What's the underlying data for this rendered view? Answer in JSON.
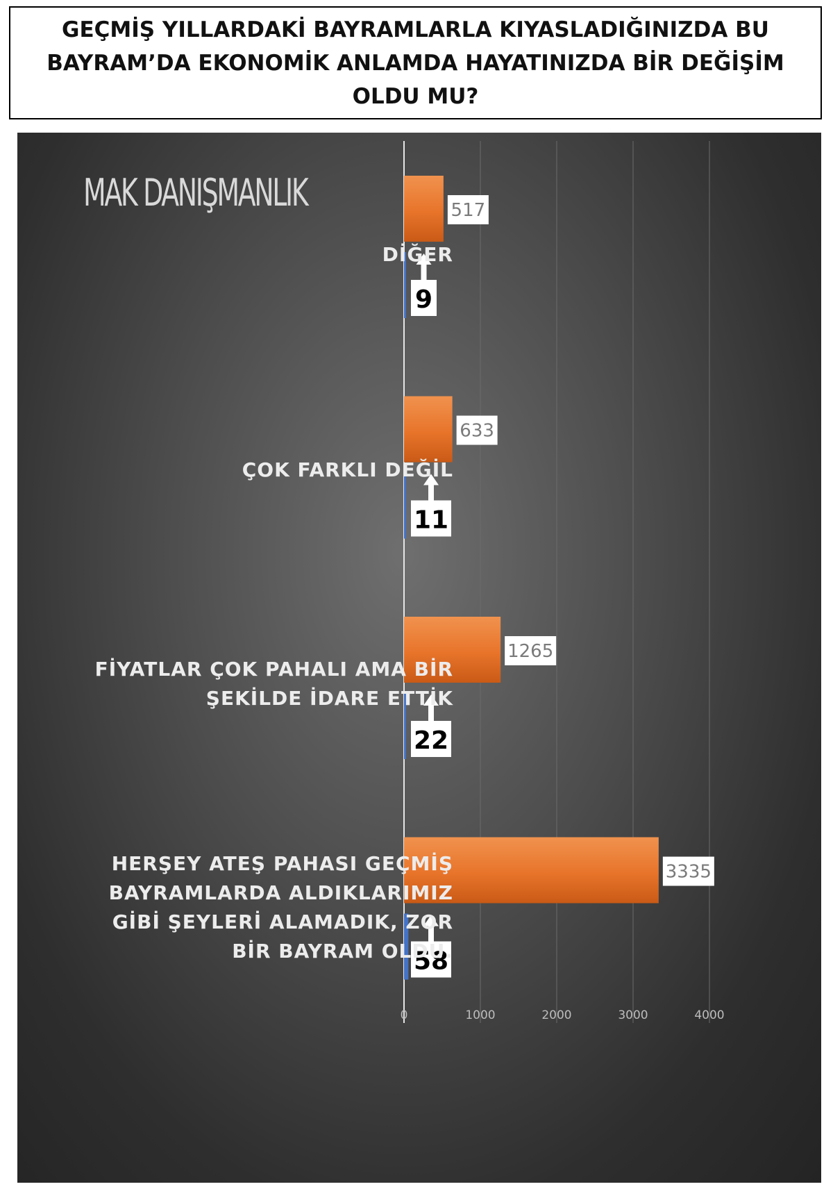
{
  "title": "GEÇMİŞ YILLARDAKİ BAYRAMLARLA KIYASLADIĞINIZDA BU BAYRAM’DA EKONOMİK ANLAMDA HAYATINIZDA BİR DEĞİŞİM OLDU MU?",
  "watermark": "MAK DANIŞMANLIK",
  "colors": {
    "bar_primary": "#e8742a",
    "bar_secondary": "#4472c4",
    "panel": "#3a3a3a",
    "label": "#ececec"
  },
  "chart_data": {
    "type": "bar",
    "orientation": "horizontal",
    "categories": [
      "DİĞER",
      "ÇOK FARKLI DEĞİL",
      "FİYATLAR ÇOK PAHALI AMA BİR ŞEKİLDE İDARE ETTİK",
      "HERŞEY ATEŞ PAHASI GEÇMİŞ BAYRAMLARDA ALDIKLARIMIZ GİBİ ŞEYLERİ  ALAMADIK, ZOR BİR BAYRAM OLDU."
    ],
    "category_lines": [
      [
        "DİĞER"
      ],
      [
        "ÇOK FARKLI DEĞİL"
      ],
      [
        "FİYATLAR ÇOK PAHALI AMA BİR",
        "ŞEKİLDE İDARE ETTİK"
      ],
      [
        "HERŞEY ATEŞ PAHASI GEÇMİŞ",
        "BAYRAMLARDA ALDIKLARIMIZ",
        "GİBİ ŞEYLERİ  ALAMADIK, ZOR",
        "BİR BAYRAM OLDU."
      ]
    ],
    "series": [
      {
        "values": [
          517,
          633,
          1265,
          3335
        ],
        "labels": [
          "517",
          "633",
          "1265",
          "3335"
        ],
        "color": "#e8742a"
      },
      {
        "values": [
          9,
          11,
          22,
          58
        ],
        "labels": [
          "9",
          "11",
          "22",
          "58"
        ],
        "color": "#4472c4"
      }
    ],
    "x_ticks": [
      0,
      1000,
      2000,
      3000,
      4000
    ],
    "x_tick_labels": [
      "0",
      "1000",
      "2000",
      "3000",
      "4000"
    ],
    "xlim": [
      0,
      4000
    ],
    "grid": true
  }
}
